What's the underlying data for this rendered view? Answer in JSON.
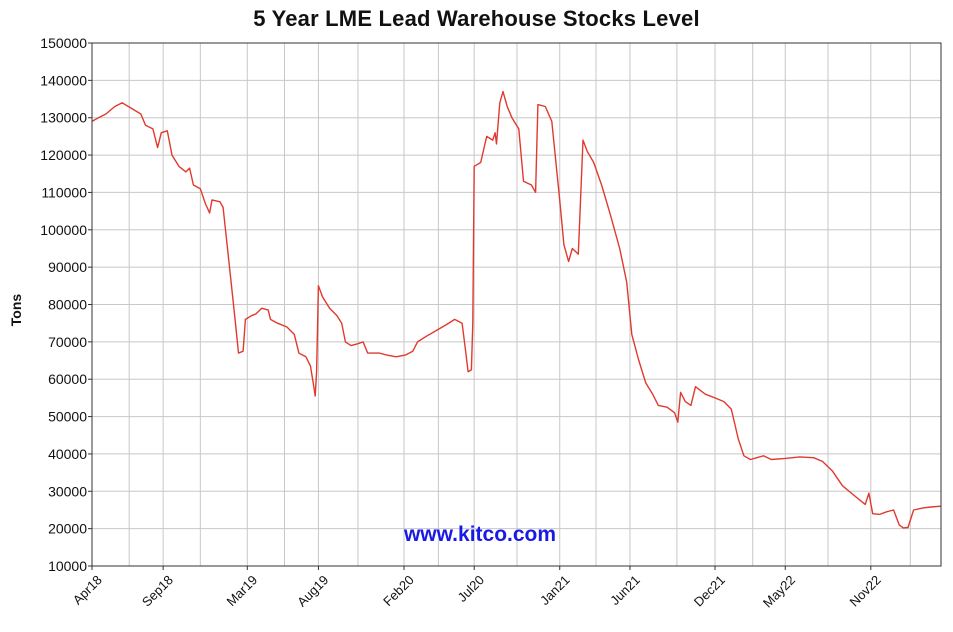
{
  "chart_data": {
    "type": "line",
    "title": "5 Year LME Lead Warehouse Stocks Level",
    "xlabel": "",
    "ylabel": "Tons",
    "watermark": "www.kitco.com",
    "ylim": [
      10000,
      150000
    ],
    "yticks": [
      10000,
      20000,
      30000,
      40000,
      50000,
      60000,
      70000,
      80000,
      90000,
      100000,
      110000,
      120000,
      130000,
      140000,
      150000
    ],
    "xlim": [
      "2018-04-01",
      "2023-04-01"
    ],
    "xticks": [
      {
        "label": "Apr18",
        "date": "2018-04-01"
      },
      {
        "label": "Sep18",
        "date": "2018-09-01"
      },
      {
        "label": "Mar19",
        "date": "2019-03-01"
      },
      {
        "label": "Aug19",
        "date": "2019-08-01"
      },
      {
        "label": "Feb20",
        "date": "2020-02-01"
      },
      {
        "label": "Jul20",
        "date": "2020-07-01"
      },
      {
        "label": "Jan21",
        "date": "2021-01-01"
      },
      {
        "label": "Jun21",
        "date": "2021-06-01"
      },
      {
        "label": "Dec21",
        "date": "2021-12-01"
      },
      {
        "label": "May22",
        "date": "2022-05-01"
      },
      {
        "label": "Nov22",
        "date": "2022-11-01"
      }
    ],
    "grid": true,
    "line_color": "#e03a2f",
    "series": [
      {
        "points": [
          [
            "2018-04-01",
            129000
          ],
          [
            "2018-04-15",
            130000
          ],
          [
            "2018-05-01",
            131000
          ],
          [
            "2018-05-20",
            133000
          ],
          [
            "2018-06-05",
            134000
          ],
          [
            "2018-06-25",
            132500
          ],
          [
            "2018-07-15",
            131000
          ],
          [
            "2018-07-25",
            128000
          ],
          [
            "2018-08-10",
            127000
          ],
          [
            "2018-08-20",
            122000
          ],
          [
            "2018-08-28",
            126000
          ],
          [
            "2018-09-10",
            126500
          ],
          [
            "2018-09-20",
            120000
          ],
          [
            "2018-10-05",
            117000
          ],
          [
            "2018-10-20",
            115500
          ],
          [
            "2018-10-28",
            116500
          ],
          [
            "2018-11-05",
            112000
          ],
          [
            "2018-11-20",
            111000
          ],
          [
            "2018-12-01",
            107000
          ],
          [
            "2018-12-10",
            104500
          ],
          [
            "2018-12-15",
            108000
          ],
          [
            "2019-01-01",
            107500
          ],
          [
            "2019-01-08",
            106000
          ],
          [
            "2019-01-20",
            92000
          ],
          [
            "2019-02-01",
            78000
          ],
          [
            "2019-02-10",
            67000
          ],
          [
            "2019-02-20",
            67500
          ],
          [
            "2019-02-25",
            76000
          ],
          [
            "2019-03-10",
            77000
          ],
          [
            "2019-03-20",
            77500
          ],
          [
            "2019-04-01",
            79000
          ],
          [
            "2019-04-15",
            78500
          ],
          [
            "2019-04-20",
            76000
          ],
          [
            "2019-05-05",
            75000
          ],
          [
            "2019-05-25",
            74000
          ],
          [
            "2019-06-10",
            72000
          ],
          [
            "2019-06-20",
            67000
          ],
          [
            "2019-07-05",
            66000
          ],
          [
            "2019-07-15",
            63500
          ],
          [
            "2019-07-22",
            58000
          ],
          [
            "2019-07-25",
            55500
          ],
          [
            "2019-07-28",
            62000
          ],
          [
            "2019-08-01",
            85000
          ],
          [
            "2019-08-10",
            82000
          ],
          [
            "2019-08-25",
            79000
          ],
          [
            "2019-09-10",
            77000
          ],
          [
            "2019-09-20",
            75000
          ],
          [
            "2019-09-28",
            70000
          ],
          [
            "2019-10-10",
            69000
          ],
          [
            "2019-10-25",
            69500
          ],
          [
            "2019-11-05",
            70000
          ],
          [
            "2019-11-15",
            67000
          ],
          [
            "2019-12-10",
            67000
          ],
          [
            "2019-12-25",
            66500
          ],
          [
            "2020-01-15",
            66000
          ],
          [
            "2020-02-05",
            66500
          ],
          [
            "2020-02-20",
            67500
          ],
          [
            "2020-03-01",
            70000
          ],
          [
            "2020-03-20",
            71500
          ],
          [
            "2020-04-10",
            73000
          ],
          [
            "2020-05-01",
            74500
          ],
          [
            "2020-05-20",
            76000
          ],
          [
            "2020-06-05",
            75000
          ],
          [
            "2020-06-12",
            68000
          ],
          [
            "2020-06-18",
            62000
          ],
          [
            "2020-06-25",
            62500
          ],
          [
            "2020-06-28",
            75000
          ],
          [
            "2020-07-01",
            117000
          ],
          [
            "2020-07-15",
            118000
          ],
          [
            "2020-07-28",
            125000
          ],
          [
            "2020-08-10",
            124000
          ],
          [
            "2020-08-15",
            126000
          ],
          [
            "2020-08-18",
            123000
          ],
          [
            "2020-08-25",
            134000
          ],
          [
            "2020-09-01",
            137000
          ],
          [
            "2020-09-10",
            133000
          ],
          [
            "2020-09-20",
            130000
          ],
          [
            "2020-10-05",
            127000
          ],
          [
            "2020-10-15",
            113000
          ],
          [
            "2020-11-01",
            112000
          ],
          [
            "2020-11-10",
            110000
          ],
          [
            "2020-11-15",
            133500
          ],
          [
            "2020-12-01",
            133000
          ],
          [
            "2020-12-15",
            129000
          ],
          [
            "2021-01-01",
            108000
          ],
          [
            "2021-01-10",
            96000
          ],
          [
            "2021-01-20",
            91500
          ],
          [
            "2021-01-28",
            95000
          ],
          [
            "2021-02-10",
            93500
          ],
          [
            "2021-02-20",
            124000
          ],
          [
            "2021-03-01",
            121000
          ],
          [
            "2021-03-15",
            118000
          ],
          [
            "2021-04-01",
            112000
          ],
          [
            "2021-04-20",
            104000
          ],
          [
            "2021-05-10",
            95000
          ],
          [
            "2021-05-25",
            86000
          ],
          [
            "2021-06-05",
            72000
          ],
          [
            "2021-06-20",
            65000
          ],
          [
            "2021-07-05",
            59000
          ],
          [
            "2021-07-20",
            56000
          ],
          [
            "2021-08-01",
            53000
          ],
          [
            "2021-08-20",
            52500
          ],
          [
            "2021-09-05",
            51000
          ],
          [
            "2021-09-12",
            48500
          ],
          [
            "2021-09-18",
            56500
          ],
          [
            "2021-09-28",
            54000
          ],
          [
            "2021-10-10",
            53000
          ],
          [
            "2021-10-20",
            58000
          ],
          [
            "2021-11-10",
            56000
          ],
          [
            "2021-12-01",
            55000
          ],
          [
            "2021-12-20",
            54000
          ],
          [
            "2022-01-05",
            52000
          ],
          [
            "2022-01-20",
            44000
          ],
          [
            "2022-02-01",
            39500
          ],
          [
            "2022-02-15",
            38500
          ],
          [
            "2022-03-01",
            39000
          ],
          [
            "2022-03-15",
            39500
          ],
          [
            "2022-04-01",
            38500
          ],
          [
            "2022-05-01",
            38800
          ],
          [
            "2022-06-01",
            39200
          ],
          [
            "2022-07-01",
            39000
          ],
          [
            "2022-07-20",
            38000
          ],
          [
            "2022-08-10",
            35500
          ],
          [
            "2022-09-01",
            31500
          ],
          [
            "2022-09-25",
            29000
          ],
          [
            "2022-10-20",
            26500
          ],
          [
            "2022-10-28",
            29500
          ],
          [
            "2022-11-05",
            24000
          ],
          [
            "2022-11-20",
            23800
          ],
          [
            "2022-12-05",
            24500
          ],
          [
            "2022-12-20",
            25000
          ],
          [
            "2023-01-01",
            21000
          ],
          [
            "2023-01-10",
            20200
          ],
          [
            "2023-01-20",
            20300
          ],
          [
            "2023-02-01",
            25000
          ],
          [
            "2023-02-20",
            25500
          ],
          [
            "2023-03-10",
            25800
          ],
          [
            "2023-04-01",
            26000
          ]
        ]
      }
    ]
  }
}
